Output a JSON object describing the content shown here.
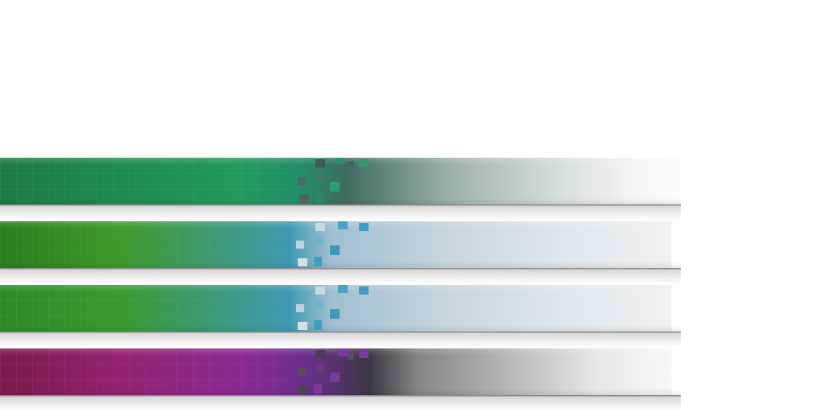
{
  "bars": [
    {
      "id": "bar-1",
      "progress": 0.45,
      "colors": {
        "start": "#1e7a44",
        "mid": "#219a5c",
        "end": "#fbfcfb",
        "pixel": "#2c9a7c"
      }
    },
    {
      "id": "bar-2",
      "progress": 0.45,
      "colors": {
        "start": "#2b7d1e",
        "mid": "#3e9a8a",
        "end": "#eef2f5",
        "pixel": "#4aa3c4"
      }
    },
    {
      "id": "bar-3",
      "progress": 0.45,
      "colors": {
        "start": "#2e8a28",
        "mid": "#3c9a8f",
        "end": "#eef2f5",
        "pixel": "#4aa3c4"
      }
    },
    {
      "id": "bar-4",
      "progress": 0.45,
      "colors": {
        "start": "#7d1a4c",
        "mid": "#8a2a92",
        "end": "#f8f8f8",
        "pixel": "#7a3a9c"
      }
    }
  ]
}
